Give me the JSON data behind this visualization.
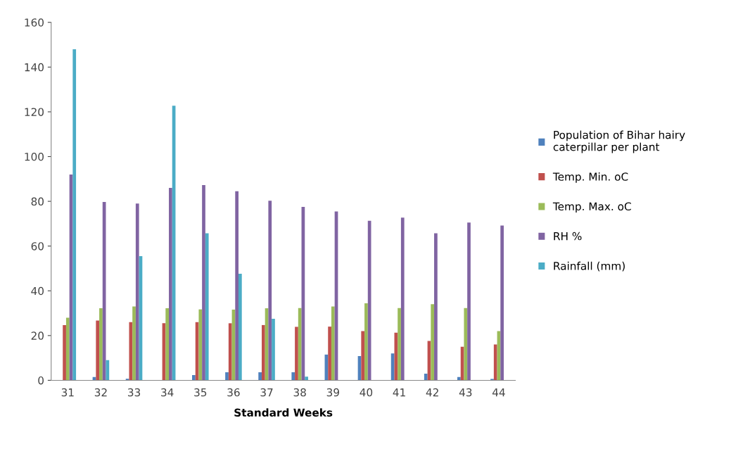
{
  "chart_data": {
    "type": "bar",
    "xlabel": "Standard Weeks",
    "categories": [
      "31",
      "32",
      "33",
      "34",
      "35",
      "36",
      "37",
      "38",
      "39",
      "40",
      "41",
      "42",
      "43",
      "44"
    ],
    "series": [
      {
        "name": "Population of Bihar hairy caterpillar per plant",
        "color": "#4f81bd",
        "values": [
          0,
          1.5,
          0.7,
          0,
          2.3,
          3.6,
          3.6,
          3.6,
          11.5,
          10.8,
          12,
          3,
          1.5,
          0.6
        ]
      },
      {
        "name": "Temp. Min. oC",
        "color": "#c0504d",
        "values": [
          24.7,
          26.7,
          26,
          25.5,
          26,
          25.5,
          24.7,
          23.9,
          24,
          22,
          21.3,
          17.6,
          15,
          16
        ]
      },
      {
        "name": "Temp. Max. oC",
        "color": "#9bbb59",
        "values": [
          28,
          32.2,
          33,
          32.2,
          31.7,
          31.6,
          32.2,
          32.3,
          33,
          34.4,
          32.3,
          34,
          32.3,
          22
        ]
      },
      {
        "name": "RH %",
        "color": "#8064a2",
        "values": [
          92,
          79.7,
          79,
          86,
          87.3,
          84.5,
          80.3,
          77.5,
          75.5,
          71.3,
          72.7,
          65.7,
          70.5,
          69.2
        ]
      },
      {
        "name": "Rainfall (mm)",
        "color": "#4bacc6",
        "values": [
          148,
          9,
          55.5,
          122.7,
          65.7,
          47.6,
          27.5,
          1.6,
          0,
          0,
          0,
          0,
          0,
          0
        ]
      }
    ],
    "ylim": [
      0,
      160
    ],
    "yticks": [
      0,
      20,
      40,
      60,
      80,
      100,
      120,
      140,
      160
    ],
    "grid": false,
    "legend": "right"
  }
}
